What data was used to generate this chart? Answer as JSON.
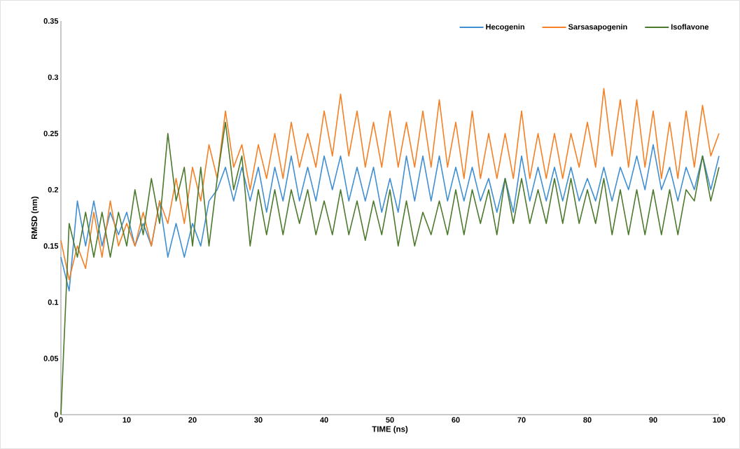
{
  "chart_data": {
    "type": "line",
    "xlabel": "TIME (ns)",
    "ylabel": "RMSD (nm)",
    "xlim": [
      0,
      100
    ],
    "ylim": [
      0,
      0.35
    ],
    "xticks": [
      0,
      10,
      20,
      30,
      40,
      50,
      60,
      70,
      80,
      90,
      100
    ],
    "yticks": [
      0,
      0.05,
      0.1,
      0.15,
      0.2,
      0.25,
      0.3,
      0.35
    ],
    "grid": false,
    "legend": "top right",
    "marker": "none",
    "line_style": "solid",
    "x": [
      0,
      1.25,
      2.5,
      3.75,
      5,
      6.25,
      7.5,
      8.75,
      10,
      11.25,
      12.5,
      13.75,
      15,
      16.25,
      17.5,
      18.75,
      20,
      21.25,
      22.5,
      23.75,
      25,
      26.25,
      27.5,
      28.75,
      30,
      31.25,
      32.5,
      33.75,
      35,
      36.25,
      37.5,
      38.75,
      40,
      41.25,
      42.5,
      43.75,
      45,
      46.25,
      47.5,
      48.75,
      50,
      51.25,
      52.5,
      53.75,
      55,
      56.25,
      57.5,
      58.75,
      60,
      61.25,
      62.5,
      63.75,
      65,
      66.25,
      67.5,
      68.75,
      70,
      71.25,
      72.5,
      73.75,
      75,
      76.25,
      77.5,
      78.75,
      80,
      81.25,
      82.5,
      83.75,
      85,
      86.25,
      87.5,
      88.75,
      90,
      91.25,
      92.5,
      93.75,
      95,
      96.25,
      97.5,
      98.75,
      100
    ],
    "series": [
      {
        "name": "Hecogenin",
        "color": "#3f8fd2",
        "values": [
          0.14,
          0.11,
          0.19,
          0.15,
          0.19,
          0.15,
          0.18,
          0.16,
          0.18,
          0.15,
          0.17,
          0.15,
          0.19,
          0.14,
          0.17,
          0.14,
          0.17,
          0.15,
          0.19,
          0.2,
          0.22,
          0.19,
          0.22,
          0.19,
          0.22,
          0.18,
          0.22,
          0.19,
          0.23,
          0.19,
          0.22,
          0.19,
          0.23,
          0.2,
          0.23,
          0.19,
          0.22,
          0.19,
          0.22,
          0.18,
          0.21,
          0.18,
          0.23,
          0.19,
          0.23,
          0.19,
          0.23,
          0.19,
          0.22,
          0.19,
          0.22,
          0.19,
          0.21,
          0.18,
          0.21,
          0.18,
          0.23,
          0.19,
          0.22,
          0.19,
          0.22,
          0.19,
          0.22,
          0.19,
          0.21,
          0.19,
          0.22,
          0.19,
          0.22,
          0.2,
          0.23,
          0.2,
          0.24,
          0.2,
          0.22,
          0.19,
          0.22,
          0.2,
          0.23,
          0.2,
          0.23
        ]
      },
      {
        "name": "Sarsasapogenin",
        "color": "#f58025",
        "values": [
          0.155,
          0.12,
          0.15,
          0.13,
          0.18,
          0.14,
          0.19,
          0.15,
          0.17,
          0.15,
          0.18,
          0.15,
          0.19,
          0.17,
          0.21,
          0.17,
          0.22,
          0.19,
          0.24,
          0.21,
          0.27,
          0.22,
          0.24,
          0.2,
          0.24,
          0.21,
          0.25,
          0.21,
          0.26,
          0.22,
          0.25,
          0.22,
          0.27,
          0.23,
          0.285,
          0.23,
          0.27,
          0.22,
          0.26,
          0.22,
          0.27,
          0.22,
          0.26,
          0.22,
          0.27,
          0.22,
          0.28,
          0.22,
          0.26,
          0.21,
          0.27,
          0.21,
          0.25,
          0.21,
          0.25,
          0.21,
          0.27,
          0.21,
          0.25,
          0.21,
          0.25,
          0.21,
          0.25,
          0.22,
          0.26,
          0.22,
          0.29,
          0.23,
          0.28,
          0.22,
          0.28,
          0.22,
          0.27,
          0.21,
          0.26,
          0.21,
          0.27,
          0.22,
          0.275,
          0.23,
          0.25
        ]
      },
      {
        "name": "Isoflavone",
        "color": "#4c7a2c",
        "values": [
          0,
          0.17,
          0.14,
          0.18,
          0.14,
          0.18,
          0.14,
          0.18,
          0.15,
          0.2,
          0.16,
          0.21,
          0.17,
          0.25,
          0.19,
          0.22,
          0.15,
          0.22,
          0.15,
          0.21,
          0.26,
          0.2,
          0.23,
          0.15,
          0.2,
          0.16,
          0.2,
          0.16,
          0.2,
          0.17,
          0.2,
          0.16,
          0.19,
          0.16,
          0.2,
          0.16,
          0.19,
          0.155,
          0.19,
          0.16,
          0.2,
          0.15,
          0.19,
          0.15,
          0.18,
          0.16,
          0.19,
          0.16,
          0.2,
          0.16,
          0.2,
          0.17,
          0.2,
          0.16,
          0.21,
          0.17,
          0.21,
          0.17,
          0.2,
          0.17,
          0.21,
          0.17,
          0.21,
          0.17,
          0.2,
          0.17,
          0.21,
          0.16,
          0.2,
          0.16,
          0.2,
          0.16,
          0.2,
          0.16,
          0.2,
          0.16,
          0.2,
          0.19,
          0.23,
          0.19,
          0.22
        ]
      }
    ]
  }
}
